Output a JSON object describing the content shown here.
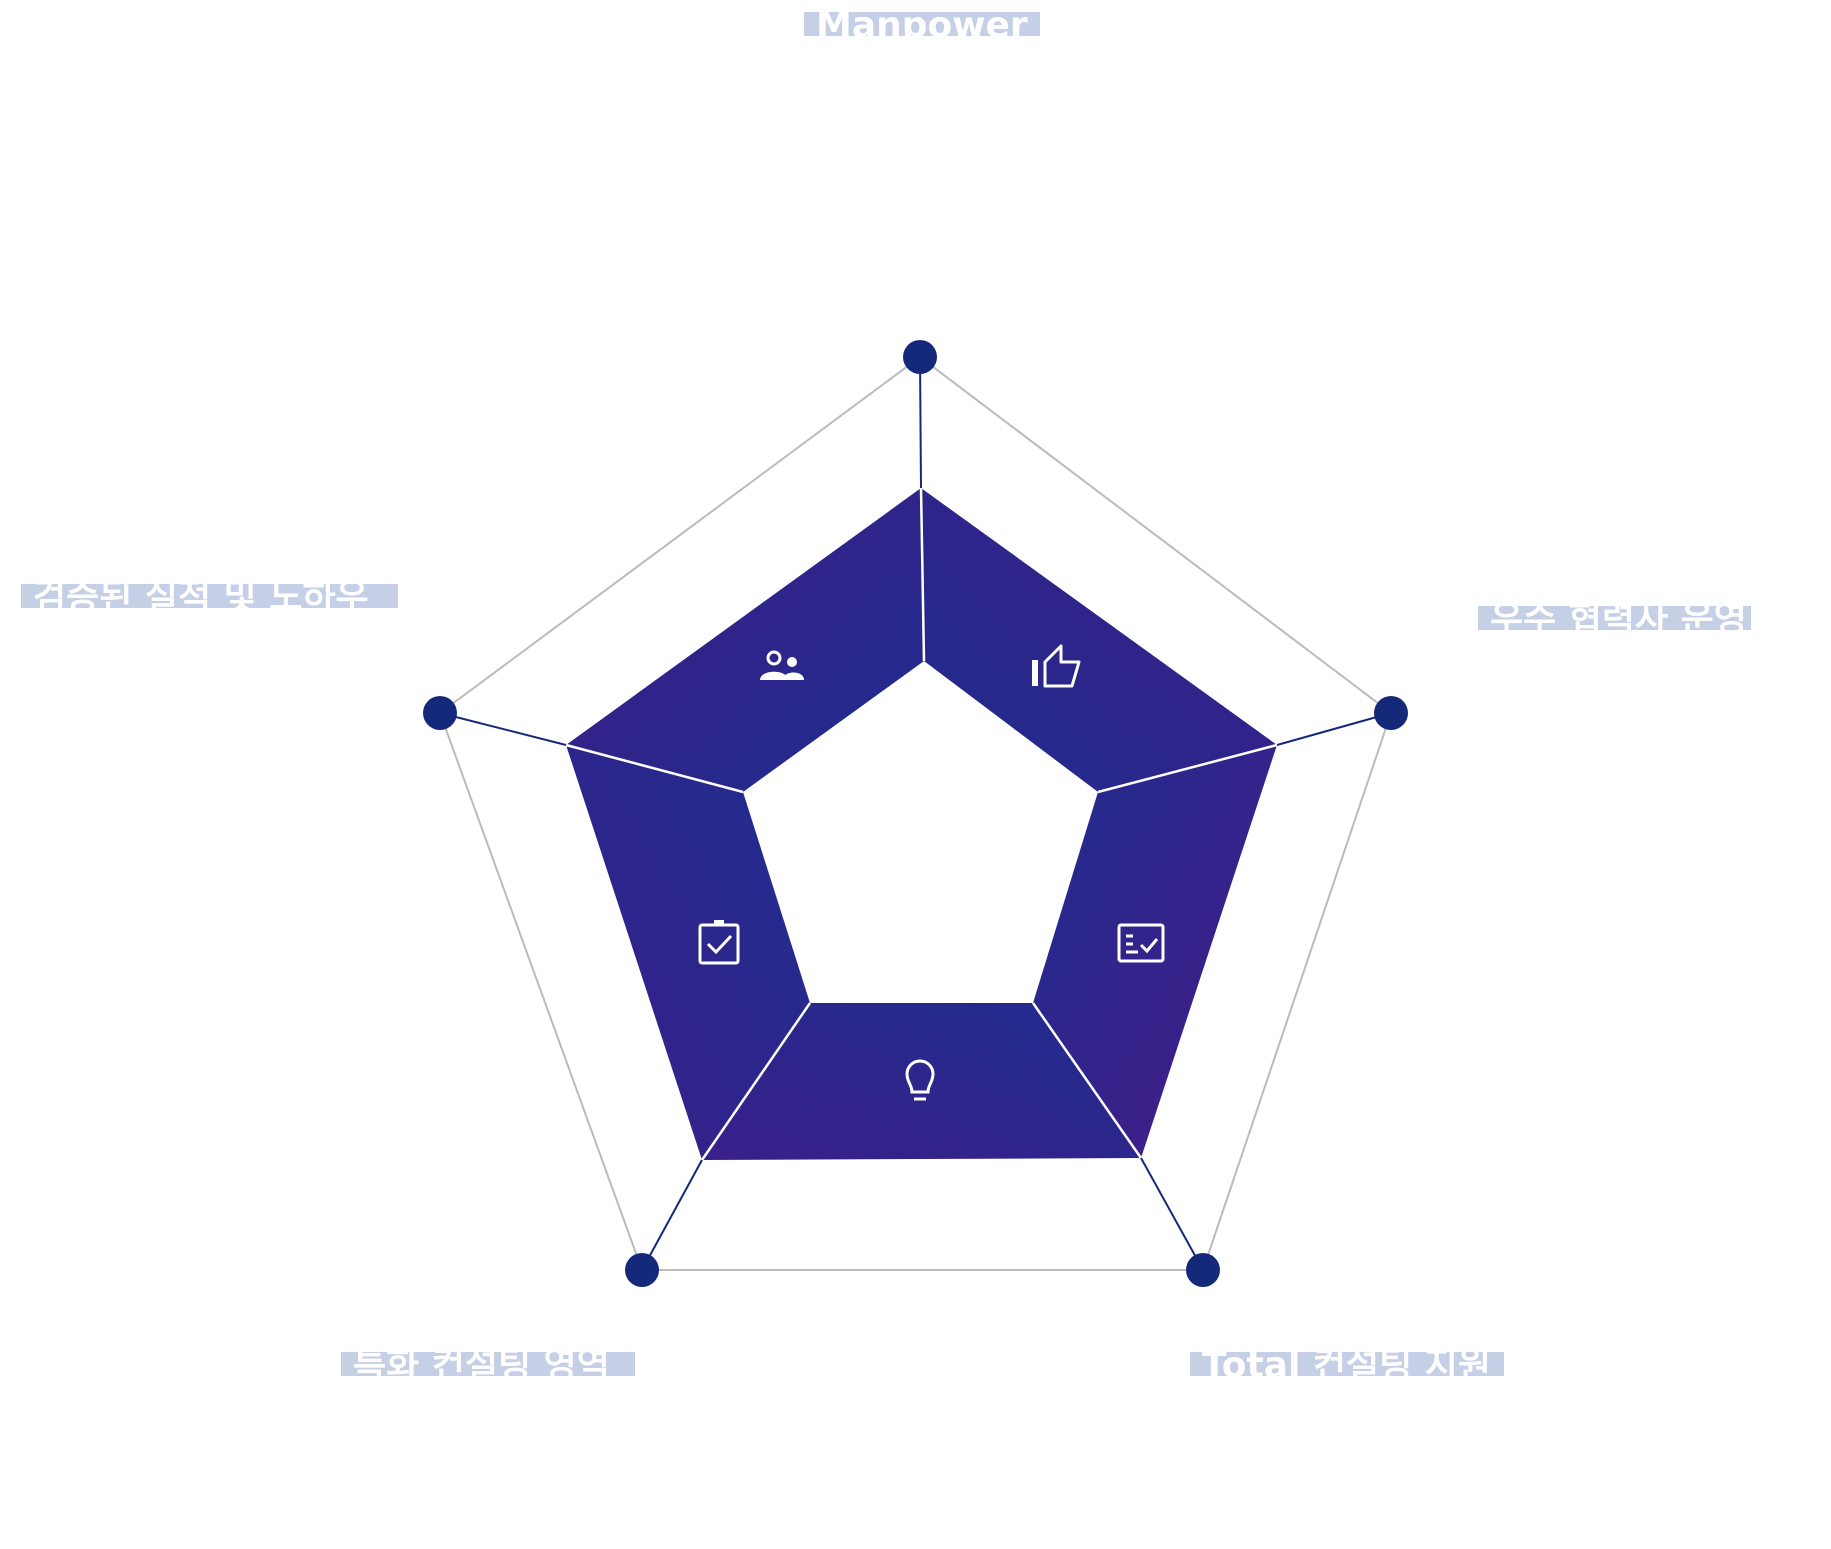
{
  "labels": {
    "top": "Manpower",
    "right": "우수 협력사 운영",
    "bottom_right": "Total 컨설팅 지원",
    "bottom_left": "특화 컨설팅 영역",
    "left": "검증된 실적 및 노하우"
  },
  "icons": {
    "top_left": "users-icon",
    "top_right": "thumbs-up-icon",
    "right": "checklist-icon",
    "bottom": "lightbulb-icon",
    "left": "clipboard-check-icon"
  },
  "colors": {
    "label_highlight": "#c5d0e6",
    "label_text": "#ffffff",
    "marker": "#14297a",
    "spoke": "#14297a",
    "outer_frame": "#bbbbbb",
    "gradient_purple": "#3e1c86",
    "gradient_blue": "#1f2d8e",
    "icon": "#ffffff"
  }
}
